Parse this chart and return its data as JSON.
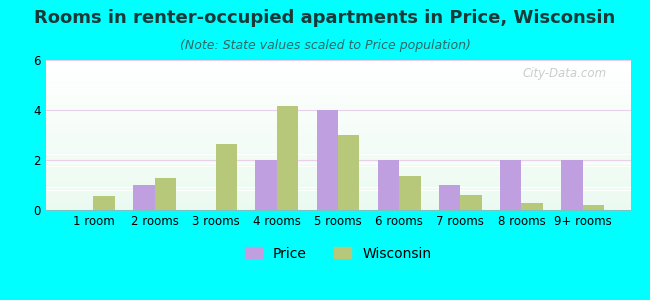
{
  "title": "Rooms in renter-occupied apartments in Price, Wisconsin",
  "subtitle": "(Note: State values scaled to Price population)",
  "categories": [
    "1 room",
    "2 rooms",
    "3 rooms",
    "4 rooms",
    "5 rooms",
    "6 rooms",
    "7 rooms",
    "8 rooms",
    "9+ rooms"
  ],
  "price_values": [
    0,
    1,
    0,
    2,
    4,
    2,
    1,
    2,
    2
  ],
  "wisconsin_values": [
    0.55,
    1.3,
    2.65,
    4.15,
    3.0,
    1.35,
    0.6,
    0.3,
    0.2
  ],
  "price_color": "#bf9fdf",
  "wisconsin_color": "#b8c87a",
  "ylim": [
    0,
    6
  ],
  "yticks": [
    0,
    2,
    4,
    6
  ],
  "background_color": "#00ffff",
  "title_fontsize": 13,
  "subtitle_fontsize": 9,
  "tick_fontsize": 8.5,
  "legend_fontsize": 10,
  "bar_width": 0.35,
  "watermark": "City-Data.com"
}
